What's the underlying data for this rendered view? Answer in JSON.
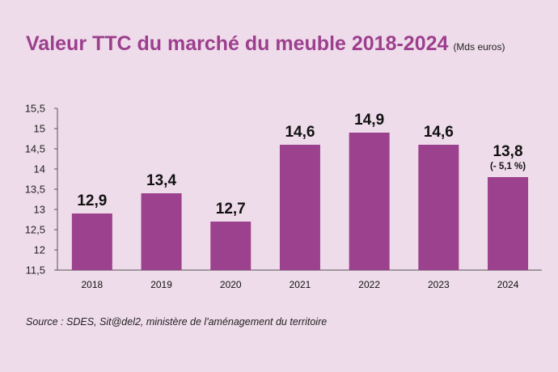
{
  "title": "Valeur TTC du marché du meuble 2018-2024",
  "unit_note": "(Mds euros)",
  "source": "Source : SDES, Sit@del2, ministère de l'aménagement du territoire",
  "colors": {
    "bar": "#9c418d",
    "title": "#9c3f8e",
    "background": "#efdcea"
  },
  "chart_data": {
    "type": "bar",
    "title": "Valeur TTC du marché du meuble 2018-2024",
    "ylabel": "Mds euros",
    "xlabel": "",
    "categories": [
      "2018",
      "2019",
      "2020",
      "2021",
      "2022",
      "2023",
      "2024"
    ],
    "values": [
      12.9,
      13.4,
      12.7,
      14.6,
      14.9,
      14.6,
      13.8
    ],
    "value_labels": [
      "12,9",
      "13,4",
      "12,7",
      "14,6",
      "14,9",
      "14,6",
      "13,8"
    ],
    "annotations": [
      {
        "category": "2024",
        "text": "(- 5,1 %)"
      }
    ],
    "ylim": [
      11.5,
      15.5
    ],
    "yticks": [
      11.5,
      12,
      12.5,
      13,
      13.5,
      14,
      14.5,
      15,
      15.5
    ],
    "ytick_labels": [
      "11,5",
      "12",
      "12,5",
      "13",
      "13,5",
      "14",
      "14,5",
      "15",
      "15,5"
    ],
    "grid": false
  }
}
